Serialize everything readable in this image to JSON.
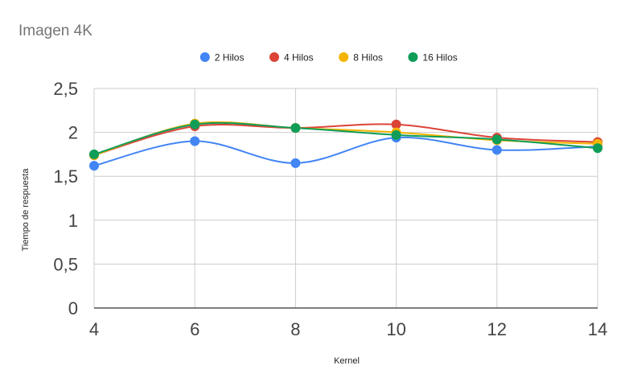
{
  "chart_data": {
    "type": "line",
    "title": "Imagen 4K",
    "xlabel": "Kernel",
    "ylabel": "Tiempo de respuesta",
    "x": [
      4,
      6,
      8,
      10,
      12,
      14
    ],
    "x_tick_labels": [
      "4",
      "6",
      "8",
      "10",
      "12",
      "14"
    ],
    "y_tick_labels": [
      "0",
      "0,5",
      "1",
      "1,5",
      "2",
      "2,5"
    ],
    "y_ticks": [
      0,
      0.5,
      1,
      1.5,
      2,
      2.5
    ],
    "xlim": [
      4,
      14
    ],
    "ylim": [
      0,
      2.5
    ],
    "grid": true,
    "legend_position": "top",
    "smooth": true,
    "series": [
      {
        "name": "2 Hilos",
        "color": "#4285F4",
        "values": [
          1.62,
          1.9,
          1.65,
          1.94,
          1.8,
          1.84
        ]
      },
      {
        "name": "4 Hilos",
        "color": "#DB4437",
        "values": [
          1.74,
          2.07,
          2.05,
          2.09,
          1.94,
          1.89
        ]
      },
      {
        "name": "8 Hilos",
        "color": "#F4B400",
        "values": [
          1.74,
          2.1,
          2.05,
          2.0,
          1.91,
          1.87
        ]
      },
      {
        "name": "16 Hilos",
        "color": "#0F9D58",
        "values": [
          1.75,
          2.09,
          2.05,
          1.97,
          1.92,
          1.82
        ]
      }
    ]
  }
}
